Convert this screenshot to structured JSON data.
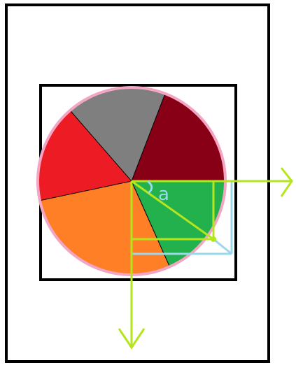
{
  "diagram": {
    "angle_label": "a",
    "colors": {
      "frame": "#000000",
      "circle_outline": "#f2a6c4",
      "axis": "#b5e61d",
      "projection": "#99d9ea",
      "slice_divider": "#000000"
    },
    "pie_slices": [
      {
        "name": "dark-red",
        "color": "#880015",
        "start_deg": 0,
        "end_deg": 69
      },
      {
        "name": "gray",
        "color": "#7f7f7f",
        "start_deg": 69,
        "end_deg": 131
      },
      {
        "name": "red",
        "color": "#ed1c24",
        "start_deg": 131,
        "end_deg": 192
      },
      {
        "name": "orange",
        "color": "#ff7f27",
        "start_deg": 192,
        "end_deg": 294
      },
      {
        "name": "green",
        "color": "#22b14c",
        "start_deg": 294,
        "end_deg": 360
      }
    ]
  }
}
